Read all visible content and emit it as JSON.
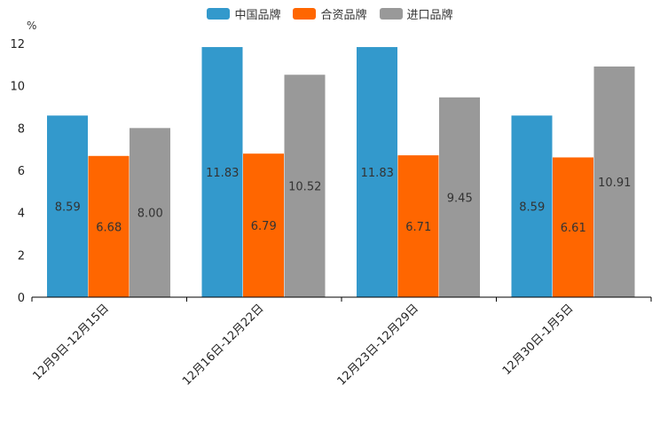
{
  "chart_data": {
    "type": "bar",
    "unit_label": "%",
    "categories": [
      "12月9日-12月15日",
      "12月16日-12月22日",
      "12月23日-12月29日",
      "12月30日-1月5日"
    ],
    "series": [
      {
        "name": "中国品牌",
        "color": "#3399cc",
        "values": [
          8.59,
          11.83,
          11.83,
          8.59
        ],
        "labels": [
          "8.59",
          "11.83",
          "11.83",
          "8.59"
        ]
      },
      {
        "name": "合资品牌",
        "color": "#ff6600",
        "values": [
          6.68,
          6.79,
          6.71,
          6.61
        ],
        "labels": [
          "6.68",
          "6.79",
          "6.71",
          "6.61"
        ]
      },
      {
        "name": "进口品牌",
        "color": "#999999",
        "values": [
          8.0,
          10.52,
          9.45,
          10.91
        ],
        "labels": [
          "8.00",
          "10.52",
          "9.45",
          "10.91"
        ]
      }
    ],
    "yticks": [
      "0",
      "2",
      "4",
      "6",
      "8",
      "10",
      "12"
    ],
    "ylim": [
      0,
      12
    ],
    "legend_position": "top-center",
    "grid": false
  }
}
